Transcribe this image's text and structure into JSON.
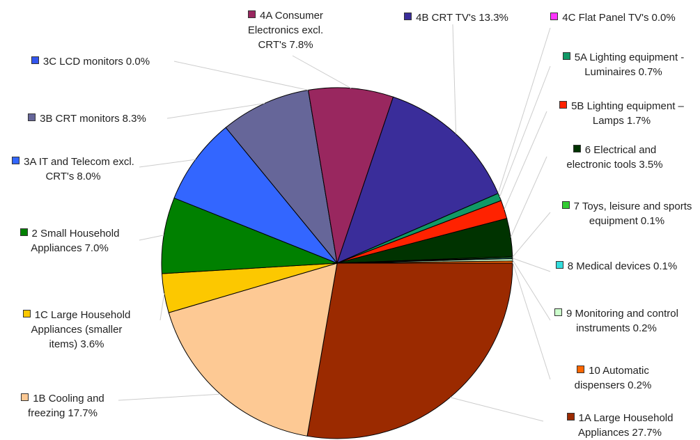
{
  "chart_data": {
    "type": "pie",
    "categories": [
      "1A Large Household Appliances",
      "1B Cooling and freezing",
      "1C Large Household Appliances (smaller items)",
      "2 Small Household Appliances",
      "3A IT and Telecom excl. CRT's",
      "3B CRT monitors",
      "3C LCD monitors",
      "4A Consumer Electronics excl. CRT's",
      "4B CRT TV's",
      "4C Flat Panel TV's",
      "5A Lighting equipment - Luminaires",
      "5B Lighting equipment – Lamps",
      "6 Electrical and electronic tools",
      "7 Toys, leisure and sports equipment",
      "8 Medical devices",
      "9 Monitoring and control instruments",
      "10 Automatic dispensers"
    ],
    "values": [
      27.7,
      17.7,
      3.6,
      7.0,
      8.0,
      8.3,
      0.0,
      7.8,
      13.3,
      0.0,
      0.7,
      1.7,
      3.5,
      0.1,
      0.1,
      0.2,
      0.2
    ],
    "value_labels": [
      "27.7%",
      "17.7%",
      "3.6%",
      "7.0%",
      "8.0%",
      "8.3%",
      "0.0%",
      "7.8%",
      "13.3%",
      "0.0%",
      "0.7%",
      "1.7%",
      "3.5%",
      "0.1%",
      "0.1%",
      "0.2%",
      "0.2%"
    ],
    "colors": [
      "#9b2a00",
      "#fdc994",
      "#fcc800",
      "#008000",
      "#3366ff",
      "#666699",
      "#3355ee",
      "#99275f",
      "#3a2d9a",
      "#ff33ff",
      "#119966",
      "#ff2200",
      "#003300",
      "#33cc33",
      "#33dddd",
      "#ccffcc",
      "#ff6600"
    ]
  }
}
